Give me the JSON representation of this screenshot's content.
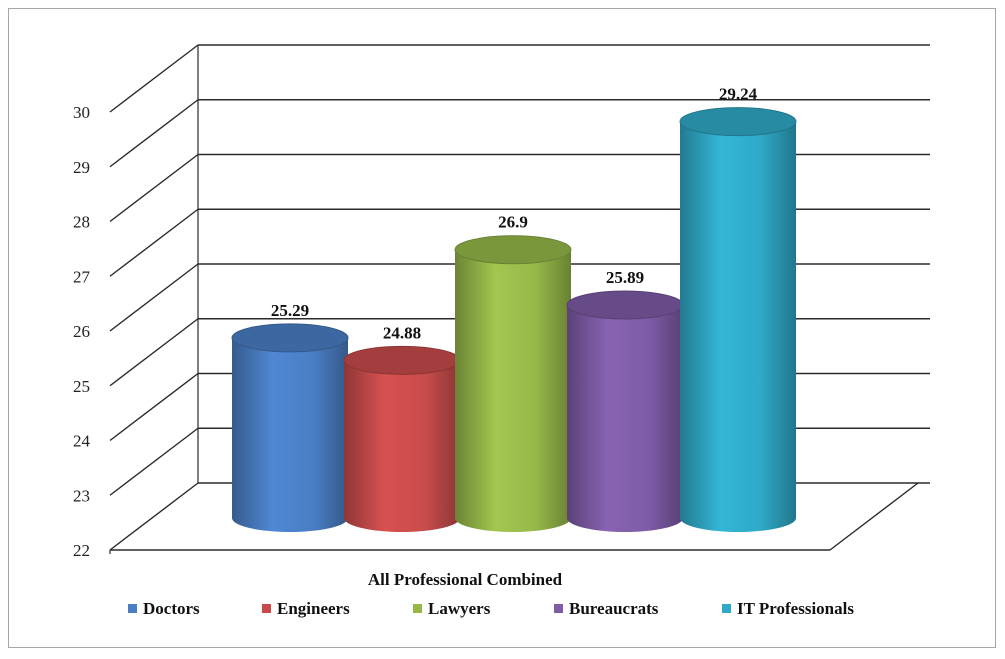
{
  "chart_data": {
    "type": "bar",
    "style": "3d-cylinder",
    "categories": [
      "All Professional Combined"
    ],
    "series": [
      {
        "name": "Doctors",
        "values": [
          25.29
        ],
        "color": "#4A7EC4"
      },
      {
        "name": "Engineers",
        "values": [
          24.88
        ],
        "color": "#C84B4B"
      },
      {
        "name": "Lawyers",
        "values": [
          26.9
        ],
        "color": "#96B849"
      },
      {
        "name": "Bureaucrats",
        "values": [
          25.89
        ],
        "color": "#7E5CA6"
      },
      {
        "name": "IT Professionals",
        "values": [
          29.24
        ],
        "color": "#2FA9C7"
      }
    ],
    "data_labels": [
      "25.29",
      "24.88",
      "26.9",
      "25.89",
      "29.24"
    ],
    "y_ticks": [
      "22",
      "23",
      "24",
      "25",
      "26",
      "27",
      "28",
      "29",
      "30"
    ],
    "ylim": [
      22,
      30
    ],
    "xlabel": "All Professional Combined",
    "grid": true,
    "legend_position": "bottom"
  }
}
